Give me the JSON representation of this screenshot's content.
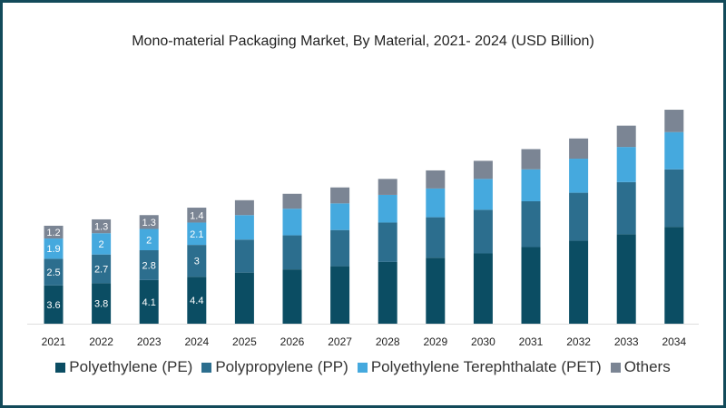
{
  "chart_data": {
    "type": "bar",
    "stacked": true,
    "title": "Mono-material Packaging Market, By Material, 2021- 2024 (USD Billion)",
    "xlabel": "",
    "ylabel": "",
    "grid": false,
    "legend_position": "bottom",
    "categories": [
      "2021",
      "2022",
      "2023",
      "2024",
      "2025",
      "2026",
      "2027",
      "2028",
      "2029",
      "2030",
      "2031",
      "2032",
      "2033",
      "2034"
    ],
    "series": [
      {
        "name": "Polyethylene (PE)",
        "color": "#0b4d63",
        "values": [
          3.6,
          3.8,
          4.1,
          4.4,
          4.8,
          5.1,
          5.4,
          5.8,
          6.2,
          6.6,
          7.2,
          7.8,
          8.4,
          9.1
        ]
      },
      {
        "name": "Polypropylene (PP)",
        "color": "#2c6e8e",
        "values": [
          2.5,
          2.7,
          2.8,
          3,
          3.1,
          3.2,
          3.4,
          3.7,
          3.8,
          4.1,
          4.3,
          4.5,
          4.9,
          5.4
        ]
      },
      {
        "name": "Polyethylene Terephthalate (PET)",
        "color": "#45a9de",
        "values": [
          1.9,
          2,
          2,
          2.1,
          2.3,
          2.5,
          2.5,
          2.6,
          2.7,
          2.9,
          3.0,
          3.2,
          3.3,
          3.5
        ]
      },
      {
        "name": "Others",
        "color": "#7b8594",
        "values": [
          1.2,
          1.3,
          1.3,
          1.4,
          1.4,
          1.4,
          1.5,
          1.5,
          1.7,
          1.7,
          1.9,
          1.9,
          2.0,
          2.1
        ]
      }
    ],
    "labeled_categories": 4
  }
}
